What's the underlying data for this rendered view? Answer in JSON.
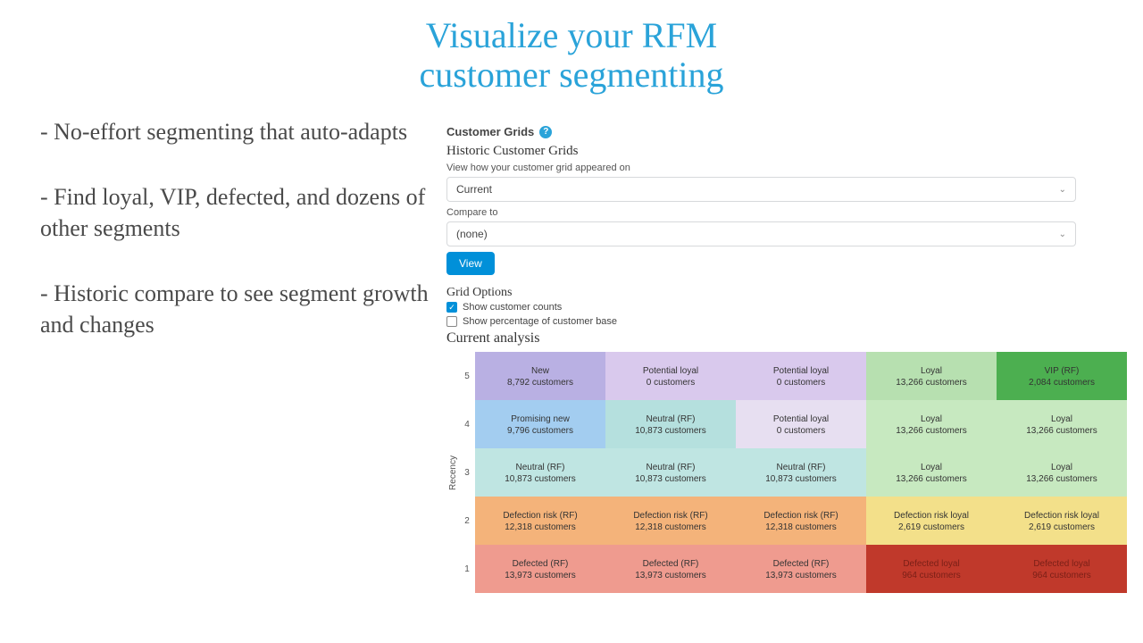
{
  "headline": {
    "line1": "Visualize your RFM",
    "line2": "customer segmenting"
  },
  "bullets": [
    "- No-effort segmenting that auto-adapts",
    "- Find loyal, VIP, defected, and dozens of other segments",
    "- Historic compare to see segment growth and changes"
  ],
  "panel": {
    "title": "Customer Grids",
    "subhead": "Historic Customer Grids",
    "subhint": "View how your customer grid appeared on",
    "select1": "Current",
    "compare_label": "Compare to",
    "select2": "(none)",
    "view_btn": "View"
  },
  "grid_options": {
    "title": "Grid Options",
    "opt1": "Show customer counts",
    "opt1_checked": true,
    "opt2": "Show percentage of customer base",
    "opt2_checked": false
  },
  "analysis": {
    "title": "Current analysis",
    "y_axis_label": "Recency",
    "y_ticks": [
      "5",
      "4",
      "3",
      "2",
      "1"
    ],
    "customers_suffix": " customers",
    "colors": {
      "new": "#b9b0e3",
      "pot_loyal": "#d9c9ed",
      "loyal": "#b7e0b0",
      "vip": "#4caf50",
      "prom_new": "#a3cdf0",
      "neutral": "#b5e0de",
      "pot_loyal2": "#e7dff1",
      "loyal2": "#c7e9c0",
      "neutral2": "#bfe5e2",
      "defect_risk": "#f4b37a",
      "defect_risk_loyal": "#f3e08a",
      "defected": "#ef9b8f",
      "defected_loyal": "#c0392b",
      "defected_loyal_text": "#7a1f17"
    },
    "rows": [
      [
        {
          "seg": "New",
          "count": "8,792",
          "bg": "new"
        },
        {
          "seg": "Potential loyal",
          "count": "0",
          "bg": "pot_loyal"
        },
        {
          "seg": "Potential loyal",
          "count": "0",
          "bg": "pot_loyal"
        },
        {
          "seg": "Loyal",
          "count": "13,266",
          "bg": "loyal"
        },
        {
          "seg": "VIP (RF)",
          "count": "2,084",
          "bg": "vip"
        }
      ],
      [
        {
          "seg": "Promising new",
          "count": "9,796",
          "bg": "prom_new"
        },
        {
          "seg": "Neutral (RF)",
          "count": "10,873",
          "bg": "neutral"
        },
        {
          "seg": "Potential loyal",
          "count": "0",
          "bg": "pot_loyal2"
        },
        {
          "seg": "Loyal",
          "count": "13,266",
          "bg": "loyal2"
        },
        {
          "seg": "Loyal",
          "count": "13,266",
          "bg": "loyal2"
        }
      ],
      [
        {
          "seg": "Neutral (RF)",
          "count": "10,873",
          "bg": "neutral2"
        },
        {
          "seg": "Neutral (RF)",
          "count": "10,873",
          "bg": "neutral2"
        },
        {
          "seg": "Neutral (RF)",
          "count": "10,873",
          "bg": "neutral2"
        },
        {
          "seg": "Loyal",
          "count": "13,266",
          "bg": "loyal2"
        },
        {
          "seg": "Loyal",
          "count": "13,266",
          "bg": "loyal2"
        }
      ],
      [
        {
          "seg": "Defection risk (RF)",
          "count": "12,318",
          "bg": "defect_risk"
        },
        {
          "seg": "Defection risk (RF)",
          "count": "12,318",
          "bg": "defect_risk"
        },
        {
          "seg": "Defection risk (RF)",
          "count": "12,318",
          "bg": "defect_risk"
        },
        {
          "seg": "Defection risk loyal",
          "count": "2,619",
          "bg": "defect_risk_loyal"
        },
        {
          "seg": "Defection risk loyal",
          "count": "2,619",
          "bg": "defect_risk_loyal"
        }
      ],
      [
        {
          "seg": "Defected (RF)",
          "count": "13,973",
          "bg": "defected"
        },
        {
          "seg": "Defected (RF)",
          "count": "13,973",
          "bg": "defected"
        },
        {
          "seg": "Defected (RF)",
          "count": "13,973",
          "bg": "defected"
        },
        {
          "seg": "Defected loyal",
          "count": "964",
          "bg": "defected_loyal",
          "txt": "defected_loyal_text"
        },
        {
          "seg": "Defected loyal",
          "count": "964",
          "bg": "defected_loyal",
          "txt": "defected_loyal_text"
        }
      ]
    ]
  }
}
